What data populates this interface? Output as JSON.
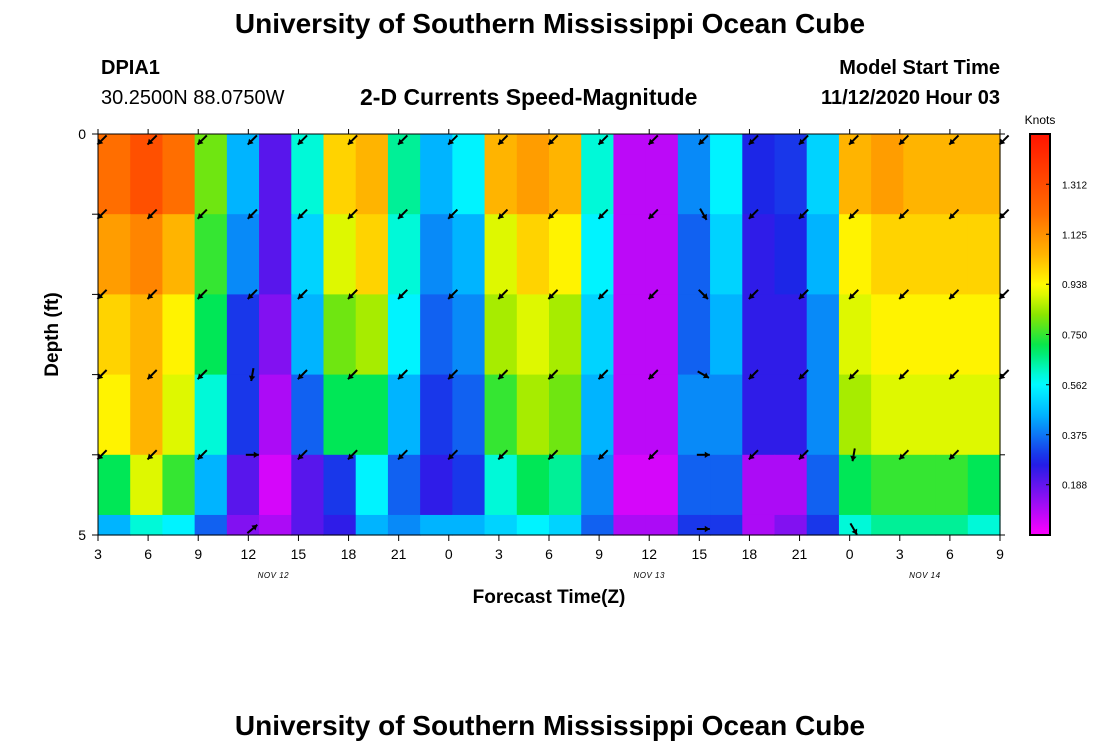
{
  "header": {
    "title": "University of Southern Mississippi Ocean Cube",
    "station_id": "DPIA1",
    "station_coords": "30.2500N 88.0750W",
    "chart_subtitle": "2-D Currents Speed-Magnitude",
    "model_start_label": "Model Start Time",
    "model_start_value": "11/12/2020 Hour 03"
  },
  "footer": {
    "title": "University of Southern Mississippi Ocean Cube"
  },
  "chart_data": {
    "type": "heatmap",
    "title": "2-D Currents Speed-Magnitude",
    "xlabel": "Forecast Time(Z)",
    "ylabel": "Depth (ft)",
    "ylim": [
      0,
      5
    ],
    "y_tick_labels": [
      "0",
      "5"
    ],
    "x_tick_labels": [
      "3",
      "6",
      "9",
      "12",
      "15",
      "18",
      "21",
      "0",
      "3",
      "6",
      "9",
      "12",
      "15",
      "18",
      "21",
      "0",
      "3",
      "6",
      "9"
    ],
    "date_labels": [
      {
        "label": "NOV 12",
        "tick_index": 3.5
      },
      {
        "label": "NOV 13",
        "tick_index": 11
      },
      {
        "label": "NOV 14",
        "tick_index": 16.5
      }
    ],
    "units": "Knots",
    "colorbar_ticks": [
      "1.312",
      "1.125",
      "0.938",
      "0.750",
      "0.562",
      "0.375",
      "0.188"
    ],
    "colorbar_tick_values": [
      1.312,
      1.125,
      0.938,
      0.75,
      0.562,
      0.375,
      0.188
    ],
    "value_range": [
      0,
      1.5
    ],
    "forecast_hours": [
      0,
      2,
      4,
      6,
      8,
      10,
      12,
      14,
      16,
      18,
      20,
      22,
      24,
      26,
      28,
      30,
      32,
      34,
      36,
      38,
      40,
      42,
      44,
      46,
      48,
      50,
      52,
      54
    ],
    "depth_layers_ft": [
      0.5,
      1.5,
      2.5,
      3.5,
      4.5,
      5.0
    ],
    "speed_grid": [
      [
        1.2,
        1.3,
        1.2,
        0.8,
        0.45,
        0.2,
        0.6,
        1.0,
        1.05,
        0.65,
        0.45,
        0.55,
        1.05,
        1.1,
        1.05,
        0.6,
        0.08,
        0.08,
        0.4,
        0.55,
        0.28,
        0.3,
        0.5,
        1.05,
        1.1,
        1.05,
        1.05,
        1.05
      ],
      [
        1.1,
        1.15,
        1.05,
        0.75,
        0.4,
        0.2,
        0.5,
        0.9,
        1.0,
        0.6,
        0.4,
        0.45,
        0.9,
        1.0,
        0.95,
        0.55,
        0.08,
        0.08,
        0.35,
        0.5,
        0.25,
        0.28,
        0.45,
        0.95,
        1.0,
        1.0,
        1.0,
        1.0
      ],
      [
        1.0,
        1.05,
        0.95,
        0.7,
        0.3,
        0.15,
        0.45,
        0.8,
        0.85,
        0.55,
        0.35,
        0.4,
        0.85,
        0.9,
        0.85,
        0.5,
        0.08,
        0.08,
        0.35,
        0.45,
        0.25,
        0.25,
        0.4,
        0.9,
        0.95,
        0.95,
        0.95,
        0.95
      ],
      [
        0.95,
        1.05,
        0.9,
        0.6,
        0.3,
        0.1,
        0.35,
        0.7,
        0.7,
        0.45,
        0.3,
        0.35,
        0.75,
        0.85,
        0.8,
        0.45,
        0.08,
        0.08,
        0.4,
        0.4,
        0.25,
        0.25,
        0.4,
        0.85,
        0.9,
        0.9,
        0.9,
        0.9
      ],
      [
        0.7,
        0.9,
        0.75,
        0.45,
        0.2,
        0.05,
        0.2,
        0.3,
        0.55,
        0.35,
        0.25,
        0.3,
        0.6,
        0.7,
        0.65,
        0.4,
        0.05,
        0.05,
        0.35,
        0.35,
        0.1,
        0.1,
        0.35,
        0.7,
        0.75,
        0.75,
        0.75,
        0.7
      ],
      [
        0.45,
        0.6,
        0.55,
        0.35,
        0.15,
        0.1,
        0.2,
        0.25,
        0.45,
        0.4,
        0.45,
        0.45,
        0.5,
        0.55,
        0.5,
        0.35,
        0.1,
        0.1,
        0.3,
        0.3,
        0.1,
        0.15,
        0.3,
        0.6,
        0.65,
        0.65,
        0.65,
        0.6
      ]
    ],
    "vector_rows_depth_ft": [
      0,
      1,
      2,
      3,
      4,
      5
    ],
    "vector_tick_indices": [
      0,
      1,
      2,
      3,
      4,
      5,
      6,
      7,
      8,
      9,
      10,
      11,
      12,
      13,
      14,
      15,
      16,
      17,
      18
    ],
    "vector_directions_deg": [
      [
        135,
        135,
        135,
        135,
        135,
        135,
        135,
        135,
        135,
        135,
        135,
        135,
        135,
        135,
        135,
        135,
        135,
        135,
        135
      ],
      [
        135,
        135,
        135,
        135,
        135,
        135,
        135,
        135,
        135,
        135,
        135,
        135,
        60,
        135,
        135,
        135,
        135,
        135,
        135
      ],
      [
        135,
        135,
        135,
        135,
        135,
        135,
        135,
        135,
        135,
        135,
        135,
        135,
        45,
        135,
        135,
        135,
        135,
        135,
        135
      ],
      [
        135,
        135,
        135,
        100,
        135,
        135,
        135,
        135,
        135,
        135,
        135,
        135,
        30,
        135,
        135,
        135,
        135,
        135,
        135
      ],
      [
        135,
        135,
        135,
        0,
        135,
        135,
        135,
        135,
        135,
        135,
        135,
        135,
        0,
        135,
        135,
        100,
        135,
        135,
        null
      ],
      [
        null,
        null,
        null,
        -40,
        null,
        null,
        null,
        null,
        null,
        null,
        null,
        null,
        0,
        null,
        null,
        60,
        null,
        null,
        null
      ]
    ]
  }
}
